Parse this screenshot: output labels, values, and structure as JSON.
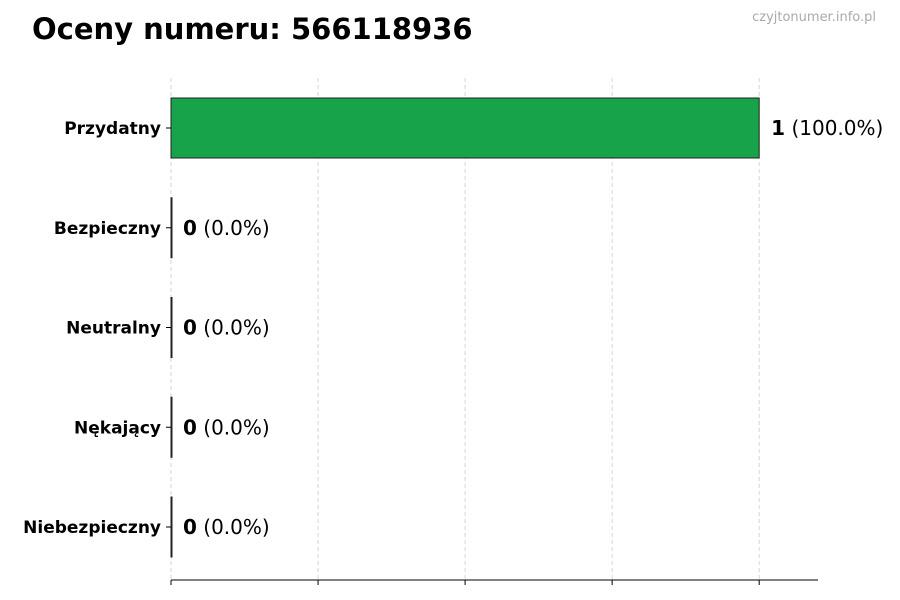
{
  "title": "Oceny numeru: 566118936",
  "watermark": "czyjtonumer.info.pl",
  "chart_data": {
    "type": "bar",
    "orientation": "horizontal",
    "title": "Oceny numeru: 566118936",
    "categories": [
      "Przydatny",
      "Bezpieczny",
      "Neutralny",
      "Nękający",
      "Niebezpieczny"
    ],
    "values": [
      1,
      0,
      0,
      0,
      0
    ],
    "labels": [
      {
        "count": "1",
        "pct": "(100.0%)"
      },
      {
        "count": "0",
        "pct": "(0.0%)"
      },
      {
        "count": "0",
        "pct": "(0.0%)"
      },
      {
        "count": "0",
        "pct": "(0.0%)"
      },
      {
        "count": "0",
        "pct": "(0.0%)"
      }
    ],
    "colors": [
      "#17a34a",
      "#17a34a",
      "#17a34a",
      "#17a34a",
      "#17a34a"
    ],
    "xlim": [
      0,
      1.1
    ],
    "xticks": [
      0,
      0.25,
      0.5,
      0.75,
      1.0
    ],
    "grid": "vertical dashed",
    "xlabel": "",
    "ylabel": ""
  }
}
